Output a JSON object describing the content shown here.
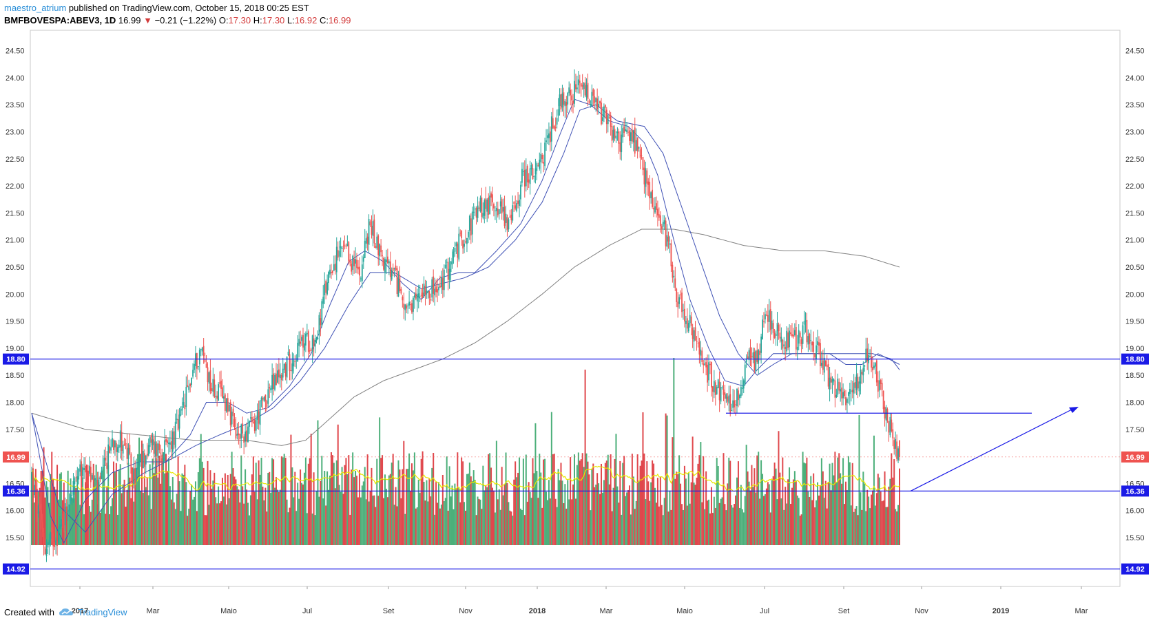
{
  "header": {
    "author": "maestro_atrium",
    "published_text": " published on TradingView.com, October 15, 2018 00:25 EST"
  },
  "quote": {
    "symbol": "BMFBOVESPA:ABEV3, 1D",
    "last": "16.99",
    "arrow": "▼",
    "change": "−0.21 (−1.22%)",
    "o_label": "O:",
    "o_value": "17.30",
    "h_label": "H:",
    "h_value": "17.30",
    "l_label": "L:",
    "l_value": "16.92",
    "c_label": "C:",
    "c_value": "16.99"
  },
  "footer": {
    "created_with": "Created with",
    "brand": "TradingView"
  },
  "colors": {
    "up": "#26a69a",
    "down": "#ef5350",
    "vol_up": "#4caf7a",
    "vol_down": "#e0474c",
    "ma_blue": "#3f51b5",
    "ma_gray": "#808080",
    "ma_yellow": "#e8e800",
    "level_line": "#1a1ae6",
    "tag_blue": "#1a1ae6",
    "tag_red": "#ef5350"
  },
  "chart_data": {
    "type": "candlestick",
    "ylim": [
      14.7,
      24.7
    ],
    "y_ticks": [
      "24.50",
      "24.00",
      "23.50",
      "23.00",
      "22.50",
      "22.00",
      "21.50",
      "21.00",
      "20.50",
      "20.00",
      "19.50",
      "19.00",
      "18.50",
      "18.00",
      "17.50",
      "16.50",
      "16.00",
      "15.50"
    ],
    "x_ticks": [
      {
        "label": "2017",
        "bold": true
      },
      {
        "label": "Mar",
        "bold": false
      },
      {
        "label": "Maio",
        "bold": false
      },
      {
        "label": "Jul",
        "bold": false
      },
      {
        "label": "Set",
        "bold": false
      },
      {
        "label": "Nov",
        "bold": false
      },
      {
        "label": "2018",
        "bold": true
      },
      {
        "label": "Mar",
        "bold": false
      },
      {
        "label": "Maio",
        "bold": false
      },
      {
        "label": "Jul",
        "bold": false
      },
      {
        "label": "Set",
        "bold": false
      },
      {
        "label": "Nov",
        "bold": false
      },
      {
        "label": "2019",
        "bold": true
      },
      {
        "label": "Mar",
        "bold": false
      }
    ],
    "horizontal_levels": [
      {
        "price": 18.8,
        "label": "18.80"
      },
      {
        "price": 16.36,
        "label": "16.36"
      },
      {
        "price": 14.92,
        "label": "14.92"
      }
    ],
    "last_price": {
      "price": 16.99,
      "label": "16.99"
    },
    "support_segment_price": 17.8,
    "close_anchors": [
      [
        0,
        16.6
      ],
      [
        10,
        15.3
      ],
      [
        20,
        15.6
      ],
      [
        30,
        16.4
      ],
      [
        40,
        16.8
      ],
      [
        50,
        16.4
      ],
      [
        60,
        17.3
      ],
      [
        68,
        17.3
      ],
      [
        76,
        16.6
      ],
      [
        88,
        17.2
      ],
      [
        100,
        17.1
      ],
      [
        110,
        17.6
      ],
      [
        120,
        18.6
      ],
      [
        126,
        19.0
      ],
      [
        134,
        18.3
      ],
      [
        146,
        18.0
      ],
      [
        152,
        17.3
      ],
      [
        166,
        17.6
      ],
      [
        176,
        18.2
      ],
      [
        190,
        18.7
      ],
      [
        202,
        19.1
      ],
      [
        212,
        19.2
      ],
      [
        222,
        20.5
      ],
      [
        232,
        20.8
      ],
      [
        244,
        20.4
      ],
      [
        252,
        21.3
      ],
      [
        262,
        20.6
      ],
      [
        272,
        20.2
      ],
      [
        282,
        19.6
      ],
      [
        292,
        20.2
      ],
      [
        302,
        20.0
      ],
      [
        312,
        20.6
      ],
      [
        322,
        21.1
      ],
      [
        334,
        21.6
      ],
      [
        346,
        21.7
      ],
      [
        356,
        21.3
      ],
      [
        366,
        22.2
      ],
      [
        376,
        22.2
      ],
      [
        386,
        23.0
      ],
      [
        394,
        23.6
      ],
      [
        402,
        23.7
      ],
      [
        410,
        23.8
      ],
      [
        418,
        23.5
      ],
      [
        428,
        23.2
      ],
      [
        436,
        22.8
      ],
      [
        446,
        23.0
      ],
      [
        456,
        22.2
      ],
      [
        466,
        21.4
      ],
      [
        474,
        21.0
      ],
      [
        480,
        20.0
      ],
      [
        490,
        19.4
      ],
      [
        500,
        18.7
      ],
      [
        510,
        18.3
      ],
      [
        520,
        17.9
      ],
      [
        528,
        18.3
      ],
      [
        534,
        19.0
      ],
      [
        540,
        18.7
      ],
      [
        546,
        19.8
      ],
      [
        556,
        19.2
      ],
      [
        566,
        19.1
      ],
      [
        576,
        19.3
      ],
      [
        586,
        18.9
      ],
      [
        594,
        18.4
      ],
      [
        604,
        18.1
      ],
      [
        614,
        18.4
      ],
      [
        622,
        18.9
      ],
      [
        630,
        18.4
      ],
      [
        636,
        17.8
      ],
      [
        642,
        17.3
      ],
      [
        646,
        17.0
      ]
    ],
    "ma_fast_anchors": [
      [
        0,
        17.8
      ],
      [
        14,
        15.9
      ],
      [
        24,
        15.4
      ],
      [
        40,
        16.2
      ],
      [
        60,
        16.7
      ],
      [
        80,
        16.9
      ],
      [
        100,
        16.9
      ],
      [
        118,
        17.4
      ],
      [
        130,
        18.0
      ],
      [
        146,
        18.0
      ],
      [
        160,
        17.8
      ],
      [
        176,
        17.9
      ],
      [
        192,
        18.3
      ],
      [
        208,
        18.9
      ],
      [
        222,
        19.8
      ],
      [
        236,
        20.6
      ],
      [
        248,
        20.8
      ],
      [
        262,
        20.6
      ],
      [
        276,
        20.2
      ],
      [
        290,
        19.9
      ],
      [
        304,
        20.3
      ],
      [
        318,
        20.4
      ],
      [
        330,
        20.4
      ],
      [
        346,
        20.8
      ],
      [
        364,
        21.3
      ],
      [
        380,
        22.1
      ],
      [
        394,
        23.0
      ],
      [
        404,
        23.6
      ],
      [
        416,
        23.5
      ],
      [
        430,
        23.2
      ],
      [
        444,
        23.1
      ],
      [
        456,
        22.8
      ],
      [
        466,
        22.2
      ],
      [
        478,
        21.0
      ],
      [
        490,
        19.9
      ],
      [
        504,
        19.0
      ],
      [
        516,
        18.4
      ],
      [
        530,
        18.3
      ],
      [
        540,
        18.6
      ],
      [
        552,
        18.9
      ],
      [
        566,
        18.9
      ],
      [
        580,
        18.9
      ],
      [
        594,
        18.9
      ],
      [
        606,
        18.7
      ],
      [
        618,
        18.7
      ],
      [
        630,
        18.9
      ],
      [
        646,
        18.7
      ]
    ],
    "ma_mid_anchors": [
      [
        0,
        17.8
      ],
      [
        20,
        16.1
      ],
      [
        40,
        15.6
      ],
      [
        60,
        16.3
      ],
      [
        84,
        16.7
      ],
      [
        100,
        16.9
      ],
      [
        122,
        17.2
      ],
      [
        140,
        17.4
      ],
      [
        160,
        17.6
      ],
      [
        180,
        17.9
      ],
      [
        200,
        18.4
      ],
      [
        218,
        19.0
      ],
      [
        236,
        19.8
      ],
      [
        252,
        20.4
      ],
      [
        270,
        20.4
      ],
      [
        290,
        20.1
      ],
      [
        306,
        20.2
      ],
      [
        322,
        20.3
      ],
      [
        340,
        20.5
      ],
      [
        360,
        21.0
      ],
      [
        380,
        21.7
      ],
      [
        396,
        22.6
      ],
      [
        408,
        23.4
      ],
      [
        420,
        23.5
      ],
      [
        436,
        23.2
      ],
      [
        456,
        23.1
      ],
      [
        470,
        22.6
      ],
      [
        484,
        21.6
      ],
      [
        498,
        20.6
      ],
      [
        512,
        19.6
      ],
      [
        526,
        18.9
      ],
      [
        540,
        18.5
      ],
      [
        552,
        18.7
      ],
      [
        566,
        18.9
      ],
      [
        580,
        18.9
      ],
      [
        598,
        18.9
      ],
      [
        612,
        18.9
      ],
      [
        626,
        18.9
      ],
      [
        640,
        18.8
      ],
      [
        646,
        18.6
      ]
    ],
    "ma_long_anchors": [
      [
        0,
        17.8
      ],
      [
        40,
        17.5
      ],
      [
        80,
        17.4
      ],
      [
        120,
        17.3
      ],
      [
        160,
        17.3
      ],
      [
        186,
        17.2
      ],
      [
        204,
        17.3
      ],
      [
        222,
        17.7
      ],
      [
        240,
        18.1
      ],
      [
        262,
        18.4
      ],
      [
        284,
        18.6
      ],
      [
        306,
        18.8
      ],
      [
        330,
        19.1
      ],
      [
        354,
        19.5
      ],
      [
        380,
        20.0
      ],
      [
        404,
        20.5
      ],
      [
        430,
        20.9
      ],
      [
        454,
        21.2
      ],
      [
        478,
        21.2
      ],
      [
        500,
        21.1
      ],
      [
        530,
        20.9
      ],
      [
        560,
        20.8
      ],
      [
        590,
        20.8
      ],
      [
        620,
        20.7
      ],
      [
        646,
        20.5
      ]
    ],
    "volume_note": "volume histogram with yellow moving average at bottom pane"
  }
}
